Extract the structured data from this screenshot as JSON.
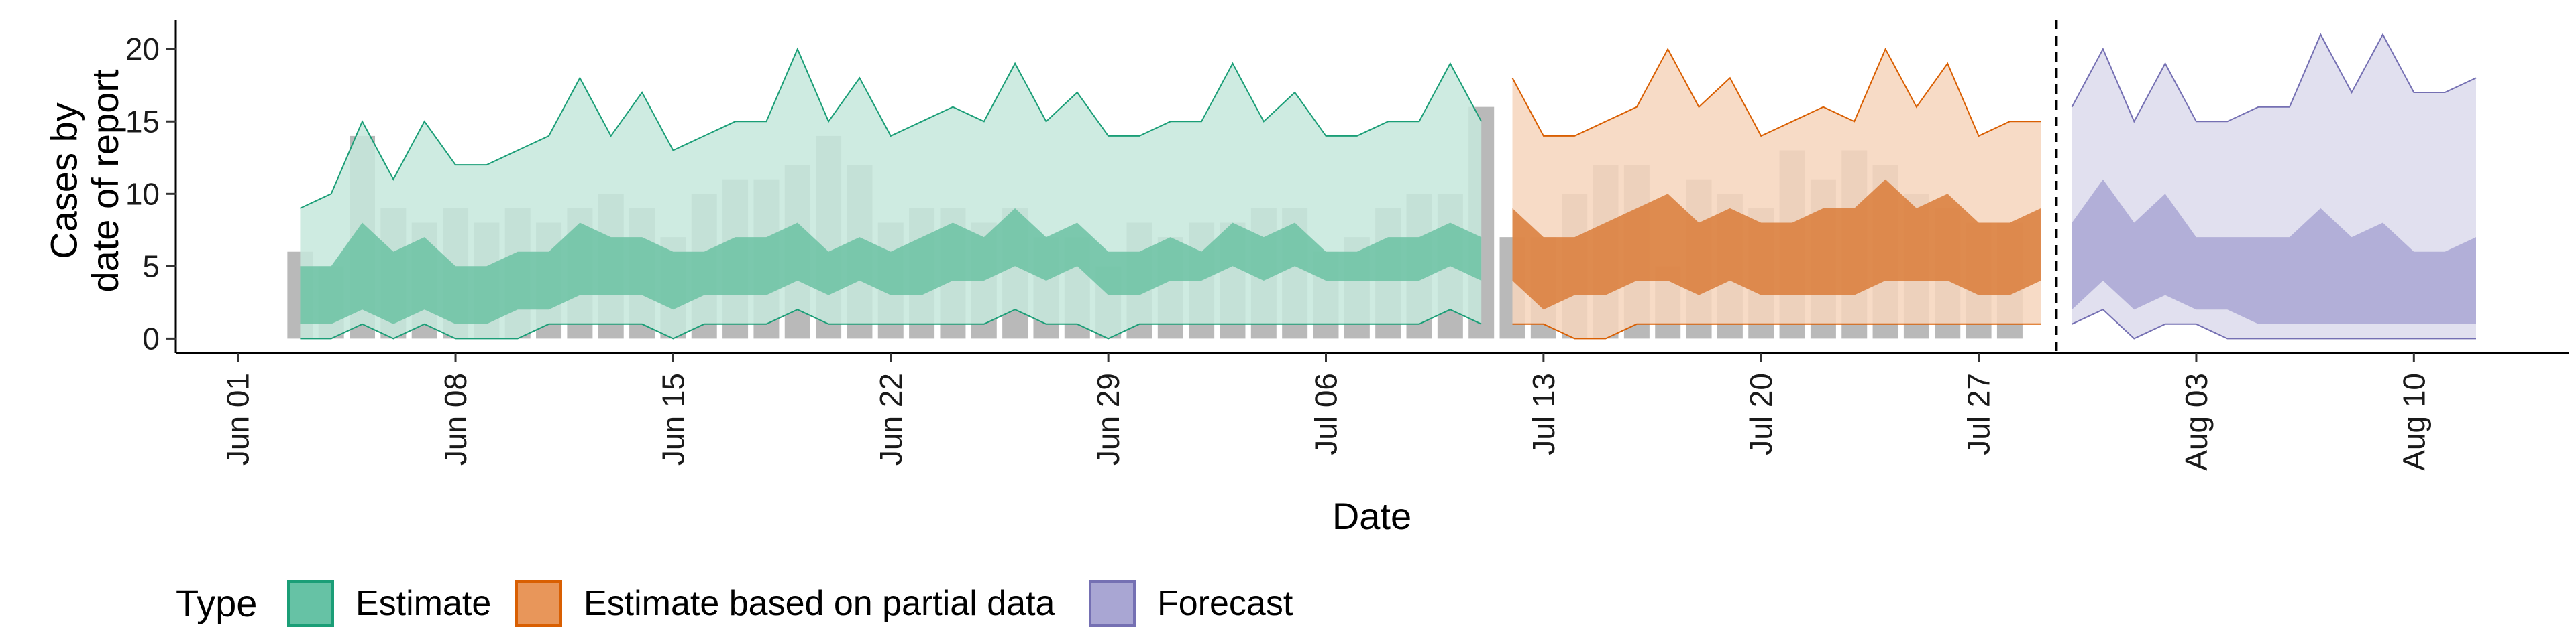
{
  "chart_data": {
    "type": "area",
    "title": "",
    "xlabel": "Date",
    "ylabel": "Cases by\ndate of report",
    "x_tick_labels": [
      "Jun 01",
      "Jun 08",
      "Jun 15",
      "Jun 22",
      "Jun 29",
      "Jul 06",
      "Jul 13",
      "Jul 20",
      "Jul 27",
      "Aug 03",
      "Aug 10"
    ],
    "y_ticks": [
      0,
      5,
      10,
      15,
      20
    ],
    "xlim": [
      "2020-05-30",
      "2020-08-15"
    ],
    "ylim": [
      -1,
      22
    ],
    "grid": false,
    "legend": {
      "title": "Type",
      "position": "bottom",
      "entries": [
        {
          "label": "Estimate",
          "fill": "#66c2a5",
          "stroke": "#1b9e77"
        },
        {
          "label": "Estimate based on partial data",
          "fill": "#e8965a",
          "stroke": "#d95f02"
        },
        {
          "label": "Forecast",
          "fill": "#a9a6d3",
          "stroke": "#7570b3"
        }
      ]
    },
    "vline_date": "2020-07-29",
    "bars": {
      "start": "2020-06-03",
      "color": "#9e9e9e",
      "values": [
        6,
        5,
        14,
        9,
        8,
        9,
        8,
        9,
        8,
        9,
        10,
        9,
        7,
        10,
        11,
        11,
        12,
        14,
        12,
        8,
        9,
        9,
        8,
        9,
        7,
        7,
        5,
        8,
        7,
        8,
        8,
        9,
        9,
        6,
        7,
        9,
        10,
        10,
        16,
        7,
        7,
        10,
        12,
        12,
        5,
        11,
        10,
        9,
        13,
        11,
        13,
        12,
        10,
        9,
        8,
        8
      ]
    },
    "series": [
      {
        "name": "Estimate",
        "start": "2020-06-03",
        "color": "#1b9e77",
        "outer_fill": "#c6e8dc",
        "inner_fill": "#6cc2a3",
        "upper90": [
          9,
          10,
          15,
          11,
          15,
          12,
          12,
          13,
          14,
          18,
          14,
          17,
          13,
          14,
          15,
          15,
          20,
          15,
          18,
          14,
          15,
          16,
          15,
          19,
          15,
          17,
          14,
          14,
          15,
          15,
          19,
          15,
          17,
          14,
          14,
          15,
          15,
          19,
          15
        ],
        "upper50": [
          5,
          5,
          8,
          6,
          7,
          5,
          5,
          6,
          6,
          8,
          7,
          7,
          6,
          6,
          7,
          7,
          8,
          6,
          7,
          6,
          7,
          8,
          7,
          9,
          7,
          8,
          6,
          6,
          7,
          6,
          8,
          7,
          8,
          6,
          6,
          7,
          7,
          8,
          7
        ],
        "lower50": [
          1,
          1,
          2,
          1,
          2,
          1,
          1,
          2,
          2,
          3,
          3,
          3,
          2,
          3,
          3,
          3,
          4,
          3,
          4,
          3,
          3,
          4,
          4,
          5,
          4,
          5,
          3,
          3,
          4,
          4,
          5,
          4,
          5,
          4,
          4,
          4,
          4,
          5,
          4
        ],
        "lower90": [
          0,
          0,
          1,
          0,
          1,
          0,
          0,
          0,
          1,
          1,
          1,
          1,
          0,
          1,
          1,
          1,
          2,
          1,
          1,
          1,
          1,
          1,
          1,
          2,
          1,
          1,
          0,
          1,
          1,
          1,
          1,
          1,
          1,
          1,
          1,
          1,
          1,
          2,
          1
        ]
      },
      {
        "name": "Estimate based on partial data",
        "start": "2020-07-12",
        "color": "#d95f02",
        "outer_fill": "#f6d5bc",
        "inner_fill": "#d97d3a",
        "upper90": [
          18,
          14,
          14,
          15,
          16,
          20,
          16,
          18,
          14,
          15,
          16,
          15,
          20,
          16,
          19,
          14,
          15,
          15
        ],
        "upper50": [
          9,
          7,
          7,
          8,
          9,
          10,
          8,
          9,
          8,
          8,
          9,
          9,
          11,
          9,
          10,
          8,
          8,
          9
        ],
        "lower50": [
          4,
          2,
          3,
          3,
          4,
          4,
          3,
          4,
          3,
          3,
          3,
          3,
          4,
          4,
          4,
          3,
          3,
          4
        ],
        "lower90": [
          1,
          1,
          0,
          0,
          1,
          1,
          1,
          1,
          1,
          1,
          1,
          1,
          1,
          1,
          1,
          1,
          1,
          1
        ]
      },
      {
        "name": "Forecast",
        "start": "2020-07-30",
        "color": "#7570b3",
        "outer_fill": "#dcdbec",
        "inner_fill": "#a9a6d3",
        "upper90": [
          16,
          20,
          15,
          19,
          15,
          15,
          16,
          16,
          21,
          17,
          21,
          17,
          17,
          18
        ],
        "upper50": [
          8,
          11,
          8,
          10,
          7,
          7,
          7,
          7,
          9,
          7,
          8,
          6,
          6,
          7
        ],
        "lower50": [
          2,
          4,
          2,
          3,
          2,
          2,
          1,
          1,
          1,
          1,
          1,
          1,
          1,
          1
        ],
        "lower90": [
          1,
          2,
          0,
          1,
          1,
          0,
          0,
          0,
          0,
          0,
          0,
          0,
          0,
          0
        ]
      }
    ]
  }
}
